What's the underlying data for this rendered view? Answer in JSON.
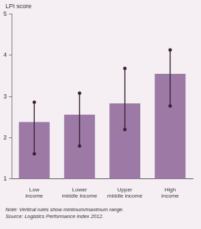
{
  "chart_data": {
    "type": "bar",
    "y_label": "LPI score",
    "categories": [
      "Low income",
      "Lower middle income",
      "Upper middle income",
      "High income"
    ],
    "values": [
      2.38,
      2.56,
      2.83,
      3.55
    ],
    "error_min": [
      1.61,
      1.8,
      2.2,
      2.77
    ],
    "error_max": [
      2.86,
      3.08,
      3.68,
      4.13
    ],
    "color": "#9c7aa5",
    "ylim": [
      1,
      5
    ],
    "yticks": [
      1,
      2,
      3,
      4,
      5
    ],
    "grid": false,
    "note": "Note: Vertical rules show minimum/maximum range.",
    "source": "Source: Logistics Performance Index 2012."
  }
}
